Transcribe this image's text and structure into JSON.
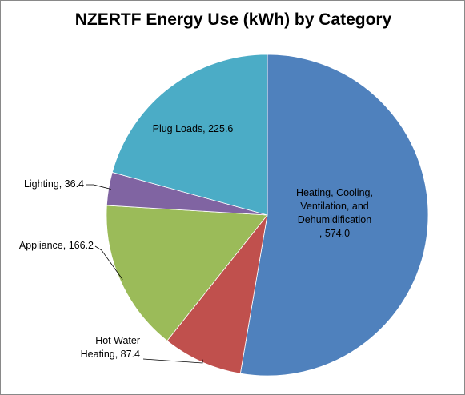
{
  "chart_data": {
    "type": "pie",
    "title": "NZERTF Energy Use (kWh) by Category",
    "start_angle_deg": 0,
    "direction": "clockwise",
    "slices": [
      {
        "label": "Heating, Cooling, Ventilation, and Dehumidification",
        "value": 574.0,
        "display_lines": [
          "Heating, Cooling,",
          "Ventilation, and",
          "Dehumidification",
          ", 574.0"
        ],
        "color": "#4F81BD"
      },
      {
        "label": "Hot Water Heating",
        "value": 87.4,
        "display_lines": [
          "Hot Water",
          "Heating, 87.4"
        ],
        "color": "#C0504D"
      },
      {
        "label": "Appliance",
        "value": 166.2,
        "display_lines": [
          "Appliance, 166.2"
        ],
        "color": "#9BBB59"
      },
      {
        "label": "Lighting",
        "value": 36.4,
        "display_lines": [
          "Lighting, 36.4"
        ],
        "color": "#8064A2"
      },
      {
        "label": "Plug Loads",
        "value": 225.6,
        "display_lines": [
          "Plug Loads, 225.6"
        ],
        "color": "#4BACC6"
      }
    ],
    "legend": "none"
  }
}
